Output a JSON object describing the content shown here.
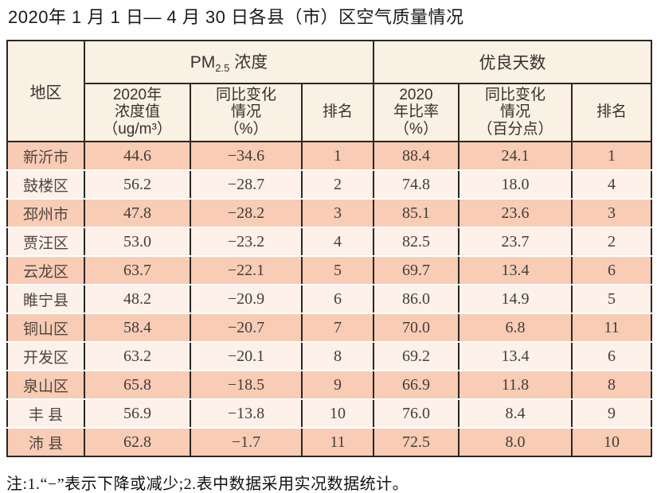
{
  "title": "2020年 1 月 1 日— 4 月 30 日各县（市）区空气质量情况",
  "table": {
    "header": {
      "region": "地区",
      "pm_group": {
        "prefix": "PM",
        "sub": "2.5",
        "suffix": " 浓度"
      },
      "good_days_group": "优良天数",
      "pm_value": "2020年\n浓度值\n（ug/m³）",
      "pm_change": "同比变化\n情况\n（%）",
      "pm_rank": "排名",
      "gd_ratio": "2020\n年比率\n（%）",
      "gd_change": "同比变化\n情况\n（百分点）",
      "gd_rank": "排名"
    },
    "rows": [
      [
        "新沂市",
        "44.6",
        "−34.6",
        "1",
        "88.4",
        "24.1",
        "1"
      ],
      [
        "鼓楼区",
        "56.2",
        "−28.7",
        "2",
        "74.8",
        "18.0",
        "4"
      ],
      [
        "邳州市",
        "47.8",
        "−28.2",
        "3",
        "85.1",
        "23.6",
        "3"
      ],
      [
        "贾汪区",
        "53.0",
        "−23.2",
        "4",
        "82.5",
        "23.7",
        "2"
      ],
      [
        "云龙区",
        "63.7",
        "−22.1",
        "5",
        "69.7",
        "13.4",
        "6"
      ],
      [
        "睢宁县",
        "48.2",
        "−20.9",
        "6",
        "86.0",
        "14.9",
        "5"
      ],
      [
        "铜山区",
        "58.4",
        "−20.7",
        "7",
        "70.0",
        "6.8",
        "11"
      ],
      [
        "开发区",
        "63.2",
        "−20.1",
        "8",
        "69.2",
        "13.4",
        "6"
      ],
      [
        "泉山区",
        "65.8",
        "−18.5",
        "9",
        "66.9",
        "11.8",
        "8"
      ],
      [
        "丰 县",
        "56.9",
        "−13.8",
        "10",
        "76.0",
        "8.4",
        "9"
      ],
      [
        "沛 县",
        "62.8",
        "−1.7",
        "11",
        "72.5",
        "8.0",
        "10"
      ]
    ]
  },
  "note": "注:1.“−”表示下降或减少;2.表中数据采用实况数据统计。",
  "colors": {
    "header-bg": "#faf0e4",
    "row-salmon": "#f8ccb5",
    "row-light": "#fdf1e9",
    "table-border": "#2b2724",
    "row-separator": "#ffffff"
  }
}
